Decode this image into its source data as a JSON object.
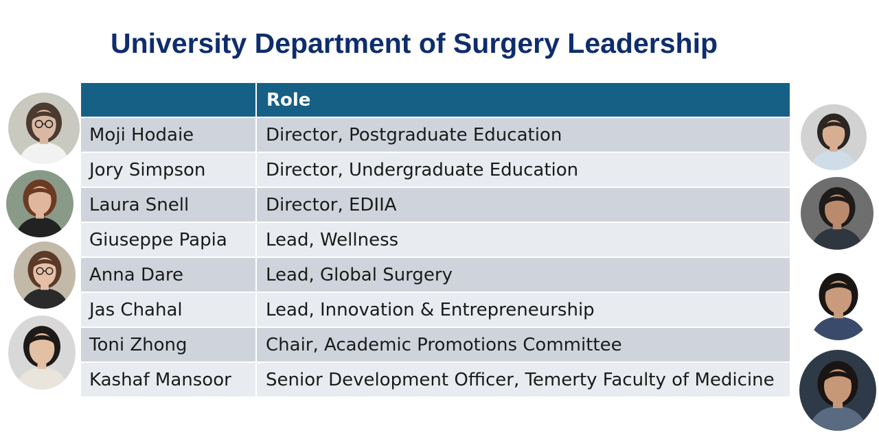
{
  "title": "University Department of Surgery Leadership",
  "table": {
    "headers": [
      "",
      "Role"
    ],
    "rows": [
      {
        "name": "Moji Hodaie",
        "role": "Director, Postgraduate Education"
      },
      {
        "name": "Jory Simpson",
        "role": "Director, Undergraduate Education"
      },
      {
        "name": "Laura Snell",
        "role": "Director, EDIIA"
      },
      {
        "name": "Giuseppe Papia",
        "role": "Lead, Wellness"
      },
      {
        "name": "Anna Dare",
        "role": "Lead, Global Surgery"
      },
      {
        "name": "Jas Chahal",
        "role": "Lead, Innovation & Entrepreneurship"
      },
      {
        "name": "Toni Zhong",
        "role": "Chair, Academic Promotions Committee"
      },
      {
        "name": "Kashaf Mansoor",
        "role": "Senior Development Officer, Temerty Faculty of Medicine"
      }
    ]
  },
  "colors": {
    "title": "#0e2d6d",
    "header_bg": "#176085",
    "row_dark": "#cfd4dc",
    "row_light": "#e8ebef"
  },
  "portraits": {
    "left": [
      {
        "bg": "#c9c9c0",
        "skin": "#d9b8a2",
        "hair": "#4a3a30",
        "clothes": "#f2f2f2",
        "glasses": true
      },
      {
        "bg": "#8a9a88",
        "skin": "#e0b79c",
        "hair": "#6b3a22",
        "clothes": "#222222",
        "glasses": false
      },
      {
        "bg": "#c3b9a8",
        "skin": "#e6c0a6",
        "hair": "#5a3a28",
        "clothes": "#2a2a2a",
        "glasses": true
      },
      {
        "bg": "#d8d8d8",
        "skin": "#e3c0a4",
        "hair": "#1e1a18",
        "clothes": "#e9e4dc",
        "glasses": false
      }
    ],
    "right": [
      {
        "bg": "#d2d2d2",
        "skin": "#d8ae92",
        "hair": "#2b2622",
        "clothes": "#cfdde9",
        "glasses": false
      },
      {
        "bg": "#6e6e6e",
        "skin": "#b98a6c",
        "hair": "#1e1b19",
        "clothes": "#2f3640",
        "glasses": false
      },
      {
        "bg": "#ffffff",
        "skin": "#c99a7c",
        "hair": "#1a1614",
        "clothes": "#3a4a6a",
        "glasses": false
      },
      {
        "bg": "#2f3a48",
        "skin": "#c79878",
        "hair": "#1a1412",
        "clothes": "#5a6a80",
        "glasses": false
      }
    ]
  }
}
